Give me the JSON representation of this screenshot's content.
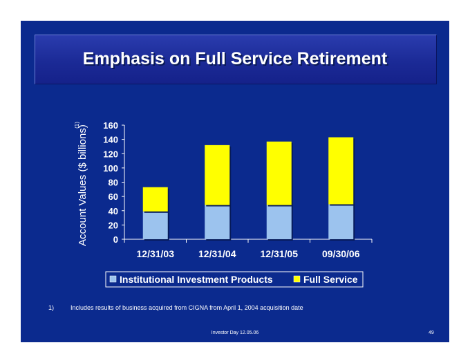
{
  "slide": {
    "title": "Emphasis on Full Service Retirement",
    "footnote_number": "1)",
    "footnote_text": "Includes results of business acquired from CIGNA from April 1, 2004 acquisition date",
    "footer": "Investor Day 12.05.06",
    "page_number": "49"
  },
  "chart_data": {
    "type": "bar",
    "stacked": true,
    "categories": [
      "12/31/03",
      "12/31/04",
      "12/31/05",
      "09/30/06"
    ],
    "series": [
      {
        "name": "Institutional Investment Products",
        "values": [
          39,
          48,
          48,
          49
        ],
        "color": "#9cc3ee"
      },
      {
        "name": "Full Service",
        "values": [
          34,
          84,
          89,
          94
        ],
        "color": "#ffff00"
      }
    ],
    "ylabel": "Account Values ($ billions)",
    "ylabel_superscript": "(1)",
    "ylim": [
      0,
      160
    ],
    "yticks": [
      "0",
      "20",
      "40",
      "60",
      "80",
      "100",
      "120",
      "140",
      "160"
    ],
    "grid": false,
    "legend_position": "bottom"
  }
}
